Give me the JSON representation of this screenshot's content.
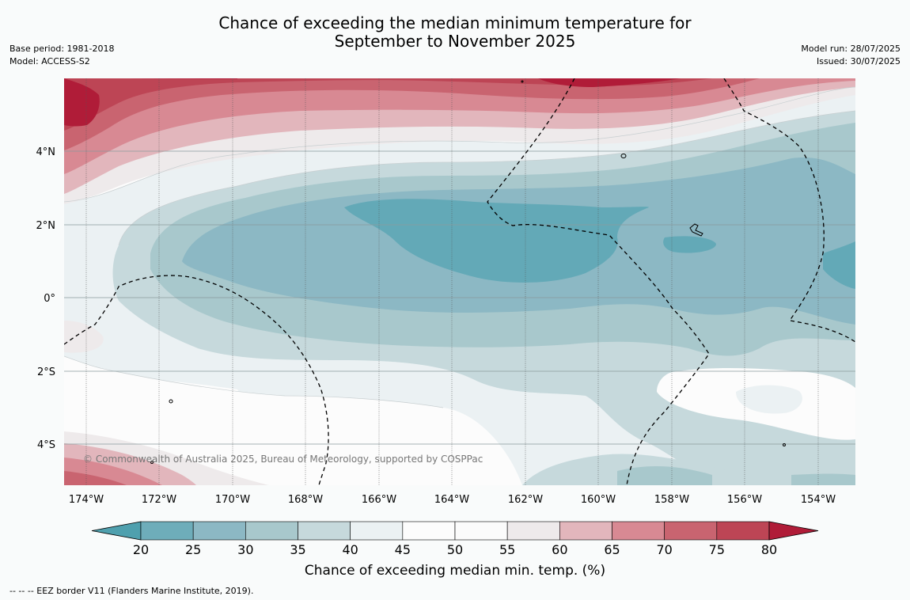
{
  "title_line1": "Chance of exceeding the median minimum temperature for",
  "title_line2": "September to November 2025",
  "meta_left": {
    "base_period": "Base period: 1981-2018",
    "model": "Model: ACCESS-S2"
  },
  "meta_right": {
    "model_run": "Model run: 28/07/2025",
    "issued": "Issued: 30/07/2025"
  },
  "copyright": "© Commonwealth of Australia 2025, Bureau of Meteorology, supported by COSPPac",
  "footer": "--  --  -- EEZ border V11 (Flanders Marine Institute, 2019).",
  "map": {
    "lon_ticks": [
      "174°W",
      "172°W",
      "170°W",
      "168°W",
      "166°W",
      "164°W",
      "162°W",
      "160°W",
      "158°W",
      "156°W",
      "154°W"
    ],
    "lat_ticks": [
      "4°N",
      "2°N",
      "0°",
      "2°S",
      "4°S"
    ]
  },
  "colorbar": {
    "title": "Chance of exceeding median min. temp. (%)",
    "ticks": [
      "20",
      "25",
      "30",
      "35",
      "40",
      "45",
      "50",
      "55",
      "60",
      "65",
      "70",
      "75",
      "80"
    ],
    "colors": [
      "#63a9b7",
      "#6eadba",
      "#8cb8c4",
      "#a8c8cc",
      "#c6d9dc",
      "#ebf1f3",
      "#fcfcfc",
      "#fbfbfb",
      "#eeeaeb",
      "#e2b6bc",
      "#d88993",
      "#c96470",
      "#bd4555",
      "#b01c38"
    ],
    "low_arrow_color": "#4fa0ae",
    "high_arrow_color": "#b01c38"
  },
  "palette": {
    "c20": "#63a9b7",
    "c25": "#8cb8c4",
    "c30": "#a8c8cc",
    "c35": "#c6d9dc",
    "c40": "#ebf1f3",
    "c45": "#fcfcfc",
    "c55": "#eeeaeb",
    "c60": "#e2b6bc",
    "c65": "#d88993",
    "c70": "#c96470",
    "c75": "#bd4555",
    "c80": "#b01c38"
  }
}
